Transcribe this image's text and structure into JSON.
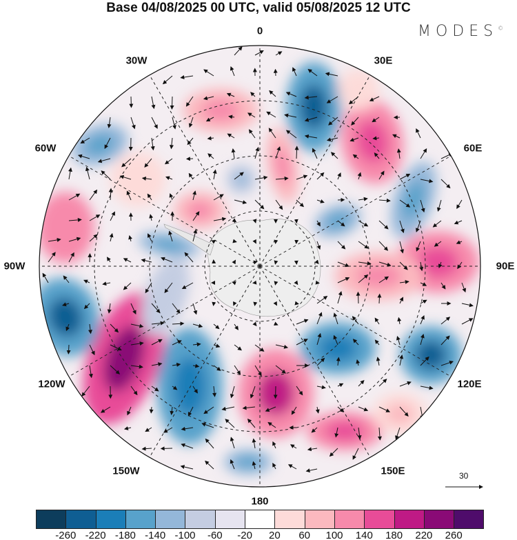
{
  "title": "Base 04/08/2025 00 UTC, valid 05/08/2025 12 UTC",
  "logo": {
    "text": "MODES",
    "mark": "©"
  },
  "longitude_labels": {
    "n0": "0",
    "e30": "30E",
    "e60": "60E",
    "e90": "90E",
    "e120": "120E",
    "e150": "150E",
    "s180": "180",
    "w150": "150W",
    "w120": "120W",
    "w90": "90W",
    "w60": "60W",
    "w30": "30W"
  },
  "vector_scale": {
    "label": "30"
  },
  "colorbar": {
    "colors": [
      "#0d3d5c",
      "#0f5e93",
      "#1b7eb8",
      "#58a2cb",
      "#94b7d9",
      "#c4cde2",
      "#e6e4f0",
      "#ffffff",
      "#fddbd9",
      "#fbb9bf",
      "#f78aab",
      "#e84c98",
      "#bf1a85",
      "#8a0a76",
      "#4f0c6b"
    ],
    "labels": [
      "-260",
      "-220",
      "-180",
      "-140",
      "-100",
      "-60",
      "-20",
      "20",
      "60",
      "100",
      "140",
      "180",
      "220",
      "260"
    ]
  }
}
